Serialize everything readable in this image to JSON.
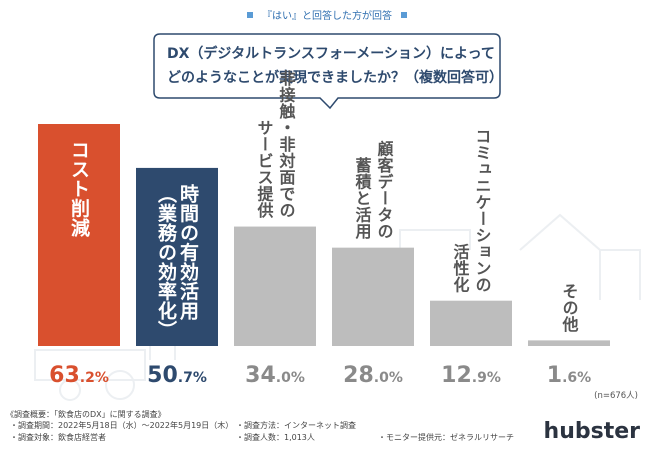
{
  "header": {
    "tag": "『はい』と回答した方が回答",
    "question_line1": "DX（デジタルトランスフォーメーション）によって",
    "question_line2": "どのようなことが実現できましたか？（複数回答可）"
  },
  "chart_data": {
    "type": "bar",
    "title": "DX（デジタルトランスフォーメーション）によってどのようなことが実現できましたか？（複数回答可）",
    "categories": [
      "コスト削減",
      "時間の有効活用（業務の効率化）",
      "非接触・非対面でのサービス提供",
      "顧客データの蓄積と活用",
      "コミュニケーションの活性化",
      "その他"
    ],
    "category_lines": [
      [
        "コスト削減"
      ],
      [
        "時間の有効活用",
        "（業務の効率化）"
      ],
      [
        "非接触・非対面での",
        "サービス提供"
      ],
      [
        "顧客データの",
        "蓄積と活用"
      ],
      [
        "コミュニケーションの",
        "活性化"
      ],
      [
        "その他"
      ]
    ],
    "values": [
      63.2,
      50.7,
      34.0,
      28.0,
      12.9,
      1.6
    ],
    "value_labels": [
      {
        "int": "63",
        "dec": ".2%"
      },
      {
        "int": "50",
        "dec": ".7%"
      },
      {
        "int": "34",
        "dec": ".0%"
      },
      {
        "int": "28",
        "dec": ".0%"
      },
      {
        "int": "12",
        "dec": ".9%"
      },
      {
        "int": "1",
        "dec": ".6%"
      }
    ],
    "unit": "%",
    "sample_note": "(n=676人)",
    "colors": {
      "highlight_1": "#d9502e",
      "highlight_2": "#2e4a6e",
      "default": "#bdbdbd",
      "value_1": "#d9502e",
      "value_2": "#2e4a6e",
      "value_default": "#8a8a8a"
    }
  },
  "footer": {
    "title": "《調査概要：「飲食店のDX」に関する調査》",
    "left": [
      "・調査期間：2022年5月18日（水）～2022年5月19日（木）",
      "・調査対象：飲食店経営者"
    ],
    "mid": [
      "・調査方法：インターネット調査",
      "・調査人数：1,013人"
    ],
    "right": "・モニター提供元：ゼネラルリサーチ",
    "logo": "hubster"
  },
  "theme": {
    "accent": "#2e4a6e",
    "brand_orange": "#d9502e",
    "bar_gray": "#bdbdbd",
    "text_dark": "#333333"
  }
}
